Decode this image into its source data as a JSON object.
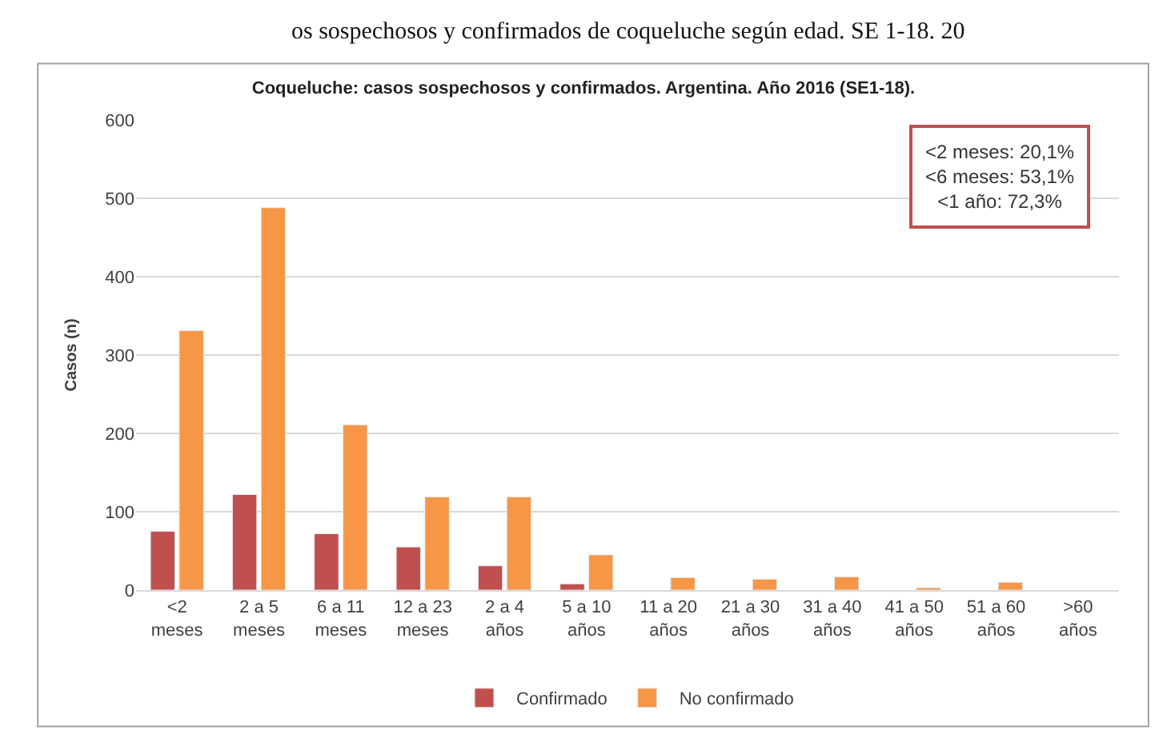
{
  "chart_data": {
    "type": "bar",
    "title": "Coqueluche: casos sospechosos y confirmados. Argentina. Año 2016 (SE1-18).",
    "ylabel": "Casos (n)",
    "categories": [
      "<2 meses",
      "2 a 5 meses",
      "6 a 11 meses",
      "12 a 23 meses",
      "2 a 4 años",
      "5 a 10 años",
      "11 a 20 años",
      "21 a 30 años",
      "31 a 40 años",
      "41 a 50 años",
      "51 a 60 años",
      ">60 años"
    ],
    "series": [
      {
        "name": "Confirmado",
        "color": "#c0504d",
        "values": [
          75,
          122,
          72,
          55,
          31,
          8,
          null,
          null,
          null,
          null,
          null,
          null
        ]
      },
      {
        "name": "No confirmado",
        "color": "#f79646",
        "values": [
          331,
          488,
          211,
          119,
          119,
          45,
          16,
          14,
          17,
          3,
          10,
          null
        ]
      }
    ],
    "ylim": [
      0,
      600
    ],
    "yticks": [
      0,
      100,
      200,
      300,
      400,
      500,
      600
    ],
    "grid": "y",
    "legend": "bottom",
    "annotations": [
      "os sospechosos y confirmados de coqueluche según edad. SE 1-18. 20",
      "<2 meses: 20,1%\n<6 meses: 53,1%\n<1 año: 72,3%"
    ]
  }
}
